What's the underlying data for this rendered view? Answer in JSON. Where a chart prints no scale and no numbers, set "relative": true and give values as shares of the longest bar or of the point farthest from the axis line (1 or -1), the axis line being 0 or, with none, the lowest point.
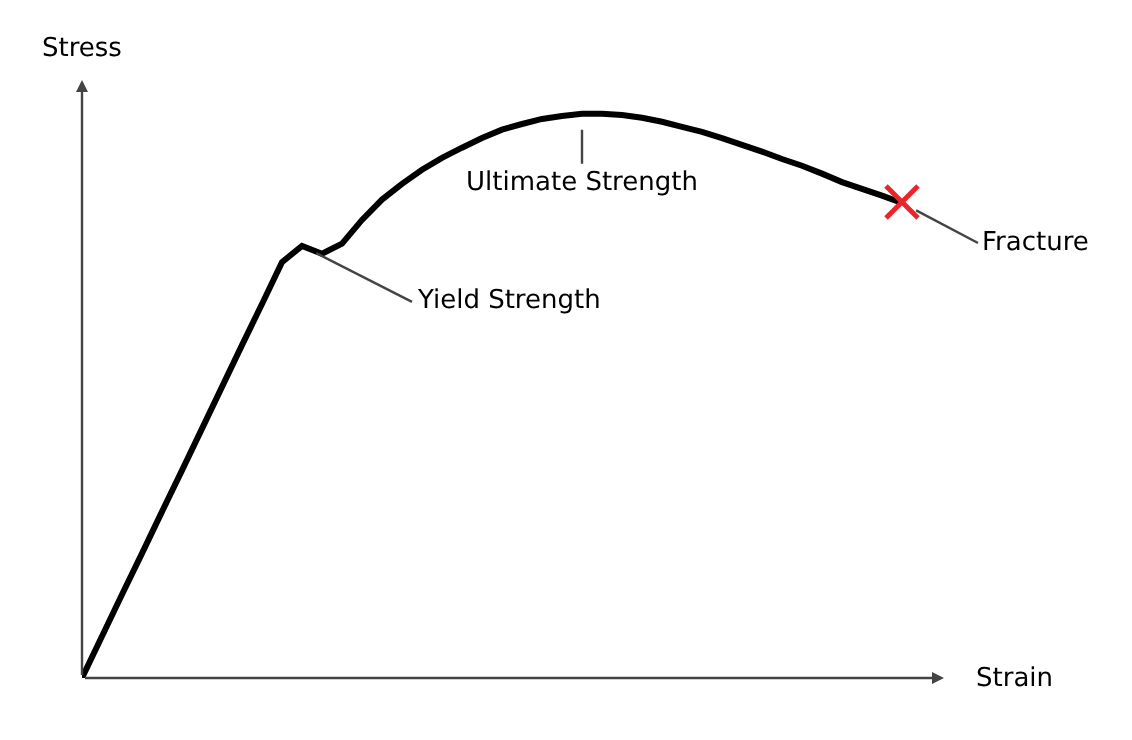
{
  "chart_data": {
    "type": "line",
    "relative": true,
    "xlabel": "Strain",
    "ylabel": "Stress",
    "categories": [
      null,
      null,
      null,
      null,
      null,
      null,
      null,
      null,
      null,
      null,
      null,
      null,
      null,
      null,
      null,
      null,
      null,
      null,
      null,
      null,
      null,
      null,
      null,
      null,
      null,
      null,
      null,
      null,
      null,
      null,
      null,
      null,
      null,
      null,
      null,
      null,
      null,
      null,
      null,
      null,
      null,
      null
    ],
    "series": [
      {
        "color": "#000000",
        "values": [
          0,
          0.074,
          0.148,
          0.221,
          0.295,
          0.368,
          0.442,
          0.516,
          0.59,
          0.663,
          0.737,
          0.766,
          0.752,
          0.77,
          0.812,
          0.848,
          0.876,
          0.901,
          0.922,
          0.94,
          0.957,
          0.972,
          0.982,
          0.991,
          0.996,
          1,
          1,
          0.998,
          0.993,
          0.986,
          0.977,
          0.968,
          0.957,
          0.945,
          0.933,
          0.92,
          0.908,
          0.894,
          0.879,
          0.867,
          0.855,
          0.842
        ]
      }
    ],
    "annotations": [
      "Yield Strength",
      "Ultimate Strength",
      "Fracture"
    ]
  }
}
